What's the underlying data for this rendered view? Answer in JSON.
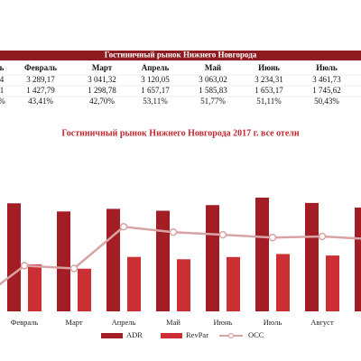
{
  "table": {
    "title": "Гостиничный рынок Нижнего Новгорода",
    "columns": [
      "ь",
      "Февраль",
      "Март",
      "Апрель",
      "Май",
      "Июнь",
      "Июль"
    ],
    "rows": [
      [
        "4",
        "3 289,17",
        "3 041,32",
        "3 120,05",
        "3 063,02",
        "3 234,31",
        "3 461,73"
      ],
      [
        "1",
        "1 427,79",
        "1 298,78",
        "1 657,17",
        "1 585,83",
        "1 653,17",
        "1 745,62"
      ],
      [
        "%",
        "43,41%",
        "42,70%",
        "53,11%",
        "51,77%",
        "51,11%",
        "50,43%"
      ]
    ]
  },
  "chart_data": {
    "type": "bar",
    "title": "Гостиничный рынок Нижнего Новгорода 2017 г. все отели",
    "categories": [
      null,
      "Февраль",
      "Март",
      "Апрель",
      "Май",
      "Июнь",
      "Июль",
      "Август",
      null
    ],
    "series": [
      {
        "name": "ADR",
        "color": "#a31d24",
        "values": [
          null,
          3289.17,
          3041.32,
          3120.05,
          3063.02,
          3234.31,
          3461.73,
          3300,
          3160
        ]
      },
      {
        "name": "RevPar",
        "color": "#cc2f33",
        "values": [
          null,
          1427.79,
          1298.78,
          1657.17,
          1585.83,
          1653.17,
          1745.62,
          1700,
          null
        ]
      },
      {
        "name": "OCC",
        "color": "#d9a3a5",
        "type": "line",
        "axis": "y2",
        "values": [
          34,
          43.41,
          42.7,
          53.11,
          51.77,
          51.11,
          50.43,
          50.7,
          50
        ]
      }
    ],
    "ylim": [
      0,
      5000
    ],
    "y2lim": [
      32,
      73
    ],
    "grid": false,
    "legend": "bottom"
  }
}
